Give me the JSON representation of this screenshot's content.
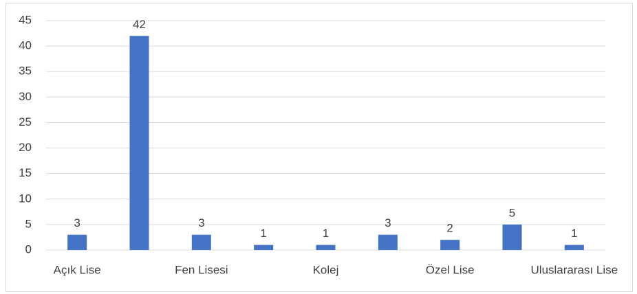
{
  "chart_data": {
    "type": "bar",
    "categories": [
      "Açık Lise",
      null,
      "Fen Lisesi",
      null,
      "Kolej",
      null,
      "Özel Lise",
      null,
      "Uluslararası Lise"
    ],
    "values": [
      3,
      42,
      3,
      1,
      1,
      3,
      2,
      5,
      1
    ],
    "color": "#4472c4",
    "ylim": [
      0,
      45
    ],
    "yticks": [
      0,
      5,
      10,
      15,
      20,
      25,
      30,
      35,
      40,
      45
    ],
    "grid": true
  }
}
